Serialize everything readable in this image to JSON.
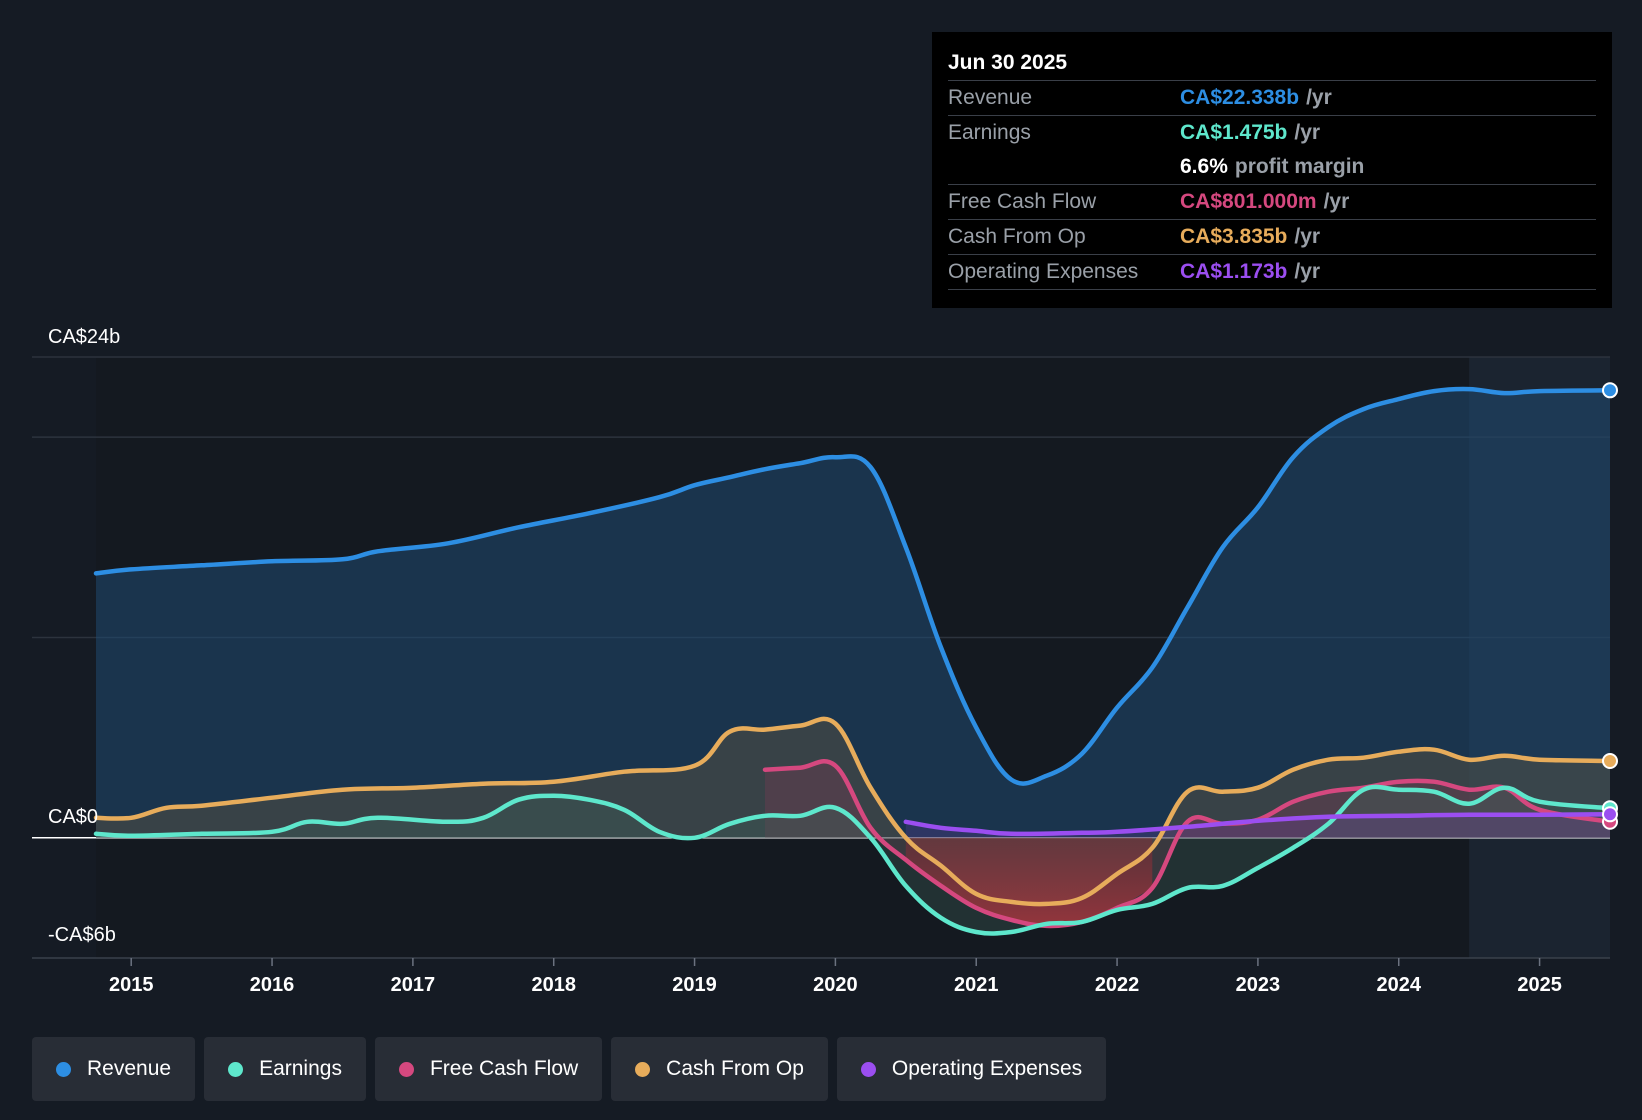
{
  "chart_data": {
    "type": "line",
    "y_axis_labels": {
      "top": "CA$24b",
      "zero": "CA$0",
      "bottom": "-CA$6b"
    },
    "ylim": [
      -6,
      24
    ],
    "xlim": [
      2014.75,
      2025.5
    ],
    "x_ticks": [
      "2015",
      "2016",
      "2017",
      "2018",
      "2019",
      "2020",
      "2021",
      "2022",
      "2023",
      "2024",
      "2025"
    ],
    "series": [
      {
        "key": "revenue",
        "name": "Revenue",
        "color": "#2d8ee3",
        "points": [
          [
            2014.75,
            13.2
          ],
          [
            2015.0,
            13.4
          ],
          [
            2015.5,
            13.6
          ],
          [
            2016.0,
            13.8
          ],
          [
            2016.5,
            13.9
          ],
          [
            2016.75,
            14.3
          ],
          [
            2017.25,
            14.7
          ],
          [
            2017.75,
            15.5
          ],
          [
            2018.25,
            16.2
          ],
          [
            2018.75,
            17.0
          ],
          [
            2019.0,
            17.6
          ],
          [
            2019.25,
            18.0
          ],
          [
            2019.5,
            18.4
          ],
          [
            2019.75,
            18.7
          ],
          [
            2020.0,
            19.0
          ],
          [
            2020.25,
            18.5
          ],
          [
            2020.5,
            14.5
          ],
          [
            2020.75,
            9.5
          ],
          [
            2021.0,
            5.5
          ],
          [
            2021.25,
            2.9
          ],
          [
            2021.5,
            3.1
          ],
          [
            2021.75,
            4.2
          ],
          [
            2022.0,
            6.5
          ],
          [
            2022.25,
            8.5
          ],
          [
            2022.5,
            11.5
          ],
          [
            2022.75,
            14.5
          ],
          [
            2023.0,
            16.5
          ],
          [
            2023.25,
            19.0
          ],
          [
            2023.5,
            20.5
          ],
          [
            2023.75,
            21.4
          ],
          [
            2024.0,
            21.9
          ],
          [
            2024.25,
            22.3
          ],
          [
            2024.5,
            22.4
          ],
          [
            2024.75,
            22.2
          ],
          [
            2025.0,
            22.3
          ],
          [
            2025.5,
            22.338
          ]
        ]
      },
      {
        "key": "earnings",
        "name": "Earnings",
        "color": "#5ee7cc",
        "points": [
          [
            2014.75,
            0.2
          ],
          [
            2015.0,
            0.1
          ],
          [
            2015.5,
            0.2
          ],
          [
            2016.0,
            0.3
          ],
          [
            2016.25,
            0.8
          ],
          [
            2016.5,
            0.7
          ],
          [
            2016.75,
            1.0
          ],
          [
            2017.25,
            0.8
          ],
          [
            2017.5,
            1.0
          ],
          [
            2017.75,
            1.9
          ],
          [
            2018.0,
            2.1
          ],
          [
            2018.25,
            1.9
          ],
          [
            2018.5,
            1.4
          ],
          [
            2018.75,
            0.3
          ],
          [
            2019.0,
            0.0
          ],
          [
            2019.25,
            0.7
          ],
          [
            2019.5,
            1.1
          ],
          [
            2019.75,
            1.1
          ],
          [
            2020.0,
            1.5
          ],
          [
            2020.25,
            0.0
          ],
          [
            2020.5,
            -2.4
          ],
          [
            2020.75,
            -4.0
          ],
          [
            2021.0,
            -4.7
          ],
          [
            2021.25,
            -4.7
          ],
          [
            2021.5,
            -4.3
          ],
          [
            2021.75,
            -4.2
          ],
          [
            2022.0,
            -3.6
          ],
          [
            2022.25,
            -3.3
          ],
          [
            2022.5,
            -2.5
          ],
          [
            2022.75,
            -2.4
          ],
          [
            2023.0,
            -1.5
          ],
          [
            2023.25,
            -0.5
          ],
          [
            2023.5,
            0.7
          ],
          [
            2023.75,
            2.4
          ],
          [
            2024.0,
            2.4
          ],
          [
            2024.25,
            2.3
          ],
          [
            2024.5,
            1.7
          ],
          [
            2024.75,
            2.5
          ],
          [
            2025.0,
            1.8
          ],
          [
            2025.5,
            1.475
          ]
        ]
      },
      {
        "key": "fcf",
        "name": "Free Cash Flow",
        "color": "#d5487f",
        "points": [
          [
            2019.5,
            3.4
          ],
          [
            2019.75,
            3.5
          ],
          [
            2020.0,
            3.6
          ],
          [
            2020.25,
            0.5
          ],
          [
            2020.5,
            -1.1
          ],
          [
            2020.75,
            -2.4
          ],
          [
            2021.0,
            -3.5
          ],
          [
            2021.25,
            -4.1
          ],
          [
            2021.5,
            -4.4
          ],
          [
            2021.75,
            -4.2
          ],
          [
            2022.0,
            -3.5
          ],
          [
            2022.25,
            -2.5
          ],
          [
            2022.5,
            0.8
          ],
          [
            2022.75,
            0.7
          ],
          [
            2023.0,
            0.9
          ],
          [
            2023.25,
            1.8
          ],
          [
            2023.5,
            2.3
          ],
          [
            2023.75,
            2.5
          ],
          [
            2024.0,
            2.8
          ],
          [
            2024.25,
            2.8
          ],
          [
            2024.5,
            2.4
          ],
          [
            2024.75,
            2.5
          ],
          [
            2025.0,
            1.4
          ],
          [
            2025.5,
            0.801
          ]
        ]
      },
      {
        "key": "cfo",
        "name": "Cash From Op",
        "color": "#e7ac5b",
        "points": [
          [
            2014.75,
            1.0
          ],
          [
            2015.0,
            1.0
          ],
          [
            2015.25,
            1.5
          ],
          [
            2015.5,
            1.6
          ],
          [
            2016.0,
            2.0
          ],
          [
            2016.5,
            2.4
          ],
          [
            2017.0,
            2.5
          ],
          [
            2017.5,
            2.7
          ],
          [
            2018.0,
            2.8
          ],
          [
            2018.5,
            3.3
          ],
          [
            2019.0,
            3.6
          ],
          [
            2019.25,
            5.3
          ],
          [
            2019.5,
            5.4
          ],
          [
            2019.75,
            5.6
          ],
          [
            2020.0,
            5.7
          ],
          [
            2020.25,
            2.5
          ],
          [
            2020.5,
            0.0
          ],
          [
            2020.75,
            -1.4
          ],
          [
            2021.0,
            -2.8
          ],
          [
            2021.25,
            -3.2
          ],
          [
            2021.5,
            -3.3
          ],
          [
            2021.75,
            -3.0
          ],
          [
            2022.0,
            -1.8
          ],
          [
            2022.25,
            -0.5
          ],
          [
            2022.5,
            2.3
          ],
          [
            2022.75,
            2.3
          ],
          [
            2023.0,
            2.5
          ],
          [
            2023.25,
            3.4
          ],
          [
            2023.5,
            3.9
          ],
          [
            2023.75,
            4.0
          ],
          [
            2024.0,
            4.3
          ],
          [
            2024.25,
            4.4
          ],
          [
            2024.5,
            3.9
          ],
          [
            2024.75,
            4.1
          ],
          [
            2025.0,
            3.9
          ],
          [
            2025.5,
            3.835
          ]
        ]
      },
      {
        "key": "opex",
        "name": "Operating Expenses",
        "color": "#9b4ef0",
        "points": [
          [
            2020.5,
            0.8
          ],
          [
            2020.75,
            0.5
          ],
          [
            2021.0,
            0.35
          ],
          [
            2021.25,
            0.2
          ],
          [
            2021.75,
            0.25
          ],
          [
            2022.0,
            0.3
          ],
          [
            2022.5,
            0.55
          ],
          [
            2023.0,
            0.85
          ],
          [
            2023.5,
            1.05
          ],
          [
            2024.0,
            1.1
          ],
          [
            2024.5,
            1.15
          ],
          [
            2025.0,
            1.15
          ],
          [
            2025.5,
            1.173
          ]
        ]
      }
    ]
  },
  "tooltip": {
    "date": "Jun 30 2025",
    "rows": [
      {
        "label": "Revenue",
        "value": "CA$22.338b",
        "unit": "/yr",
        "color": "#2d8ee3"
      },
      {
        "label": "Earnings",
        "value": "CA$1.475b",
        "unit": "/yr",
        "color": "#5ee7cc"
      },
      {
        "label": "",
        "pct": "6.6%",
        "unit": "profit margin"
      },
      {
        "label": "Free Cash Flow",
        "value": "CA$801.000m",
        "unit": "/yr",
        "color": "#d5487f"
      },
      {
        "label": "Cash From Op",
        "value": "CA$3.835b",
        "unit": "/yr",
        "color": "#e7ac5b"
      },
      {
        "label": "Operating Expenses",
        "value": "CA$1.173b",
        "unit": "/yr",
        "color": "#9b4ef0"
      }
    ]
  },
  "legend": [
    {
      "label": "Revenue",
      "color": "#2d8ee3"
    },
    {
      "label": "Earnings",
      "color": "#5ee7cc"
    },
    {
      "label": "Free Cash Flow",
      "color": "#d5487f"
    },
    {
      "label": "Cash From Op",
      "color": "#e7ac5b"
    },
    {
      "label": "Operating Expenses",
      "color": "#9b4ef0"
    }
  ]
}
